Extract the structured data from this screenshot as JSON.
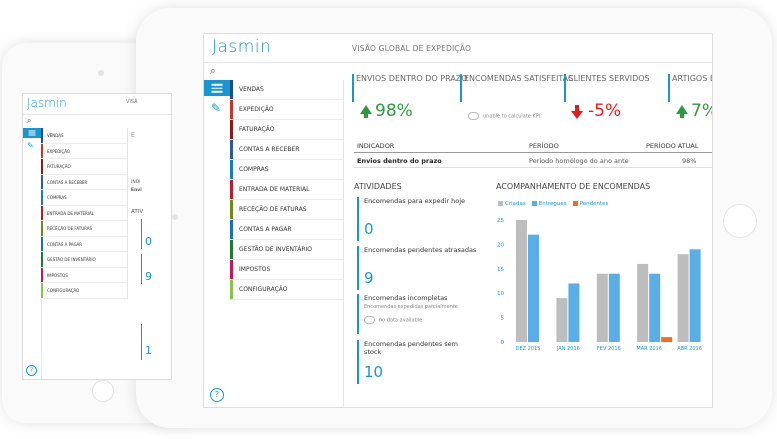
{
  "app": {
    "brand": "Jasmin"
  },
  "front": {
    "title": "VISÃO GLOBAL DE EXPEDIÇÃO",
    "menu": [
      {
        "label": "VENDAS",
        "color": "#1f4e8c"
      },
      {
        "label": "EXPEDIÇÃO",
        "color": "#c0392b"
      },
      {
        "label": "FATURAÇÃO",
        "color": "#8b1a1a"
      },
      {
        "label": "CONTAS A RECEBER",
        "color": "#2b5aa0"
      },
      {
        "label": "COMPRAS",
        "color": "#1a7fb5"
      },
      {
        "label": "ENTRADA DE MATERIAL",
        "color": "#b71c2c"
      },
      {
        "label": "RECEÇÃO DE FATURAS",
        "color": "#6d8b1a"
      },
      {
        "label": "CONTAS A PAGAR",
        "color": "#1a6fb5"
      },
      {
        "label": "GESTÃO DE INVENTÁRIO",
        "color": "#1e7a3a"
      },
      {
        "label": "IMPOSTOS",
        "color": "#c2185b"
      },
      {
        "label": "CONFIGURAÇÃO",
        "color": "#8bc34a"
      }
    ],
    "kpis": [
      {
        "label": "ENVIOS DENTRO DO PRAZO",
        "value": "98%",
        "trend": "up"
      },
      {
        "label": "ENCOMENDAS SATISFEITAS",
        "value": "",
        "note": "unable to calculate KPI"
      },
      {
        "label": "CLIENTES SERVIDOS",
        "value": "-5%",
        "trend": "down"
      },
      {
        "label": "ARTIGOS E",
        "value": "7%",
        "trend": "up"
      }
    ],
    "indicator_table": {
      "headers": [
        "INDICADOR",
        "PERÍODO",
        "PERÍODO ATUAL"
      ],
      "row": [
        "Envios dentro do prazo",
        "Período homólogo do ano ante",
        "98%"
      ]
    },
    "activities_title": "ATIVIDADES",
    "activities": [
      {
        "title": "Encomendas para expedir hoje",
        "value": "0"
      },
      {
        "title": "Encomendas pendentes atrasadas",
        "value": "9"
      },
      {
        "title": "Encomendas incompletas",
        "subtitle": "Encomendas expedidas parcialmente",
        "note": "no data available"
      },
      {
        "title": "Encomendas pendentes sem stock",
        "value": "10"
      }
    ],
    "help": "?"
  },
  "chart_data": {
    "type": "bar",
    "title": "ACOMPANHAMENTO DE ENCOMENDAS",
    "categories": [
      "DEZ 2015",
      "JAN 2016",
      "FEV 2016",
      "MAR 2016",
      "ABR 2016"
    ],
    "series": [
      {
        "name": "Criadas",
        "color": "#bdbdbd",
        "values": [
          25,
          9,
          14,
          16,
          18
        ]
      },
      {
        "name": "Entregues",
        "color": "#5aaee6",
        "values": [
          22,
          12,
          14,
          14,
          19
        ]
      },
      {
        "name": "Pendentes",
        "color": "#f06c1f",
        "values": [
          0,
          0,
          0,
          1,
          0
        ]
      }
    ],
    "yticks": [
      0,
      5,
      10,
      15,
      20,
      25
    ],
    "ylim": [
      0,
      25
    ],
    "legend": "top-left"
  },
  "back": {
    "title": "VISÃ",
    "menu": [
      {
        "label": "VENDAS",
        "color": "#1f4e8c"
      },
      {
        "label": "EXPEDIÇÃO",
        "color": "#c0392b"
      },
      {
        "label": "FATURAÇÃO",
        "color": "#8b1a1a"
      },
      {
        "label": "CONTAS A RECEBER",
        "color": "#2b5aa0"
      },
      {
        "label": "COMPRAS",
        "color": "#1a7fb5"
      },
      {
        "label": "ENTRADA DE MATERIAL",
        "color": "#b71c2c"
      },
      {
        "label": "RECEÇÃO DE FATURAS",
        "color": "#6d8b1a"
      },
      {
        "label": "CONTAS A PAGAR",
        "color": "#1a6fb5"
      },
      {
        "label": "GESTÃO DE INVENTÁRIO",
        "color": "#1e7a3a"
      },
      {
        "label": "IMPOSTOS",
        "color": "#c2185b"
      },
      {
        "label": "CONFIGURAÇÃO",
        "color": "#8bc34a"
      }
    ],
    "fragments": {
      "kpi": "E",
      "ind": "INDI",
      "row": "Envi",
      "act": "ATIV"
    },
    "values": [
      "0",
      "9",
      "1"
    ],
    "help": "?"
  }
}
